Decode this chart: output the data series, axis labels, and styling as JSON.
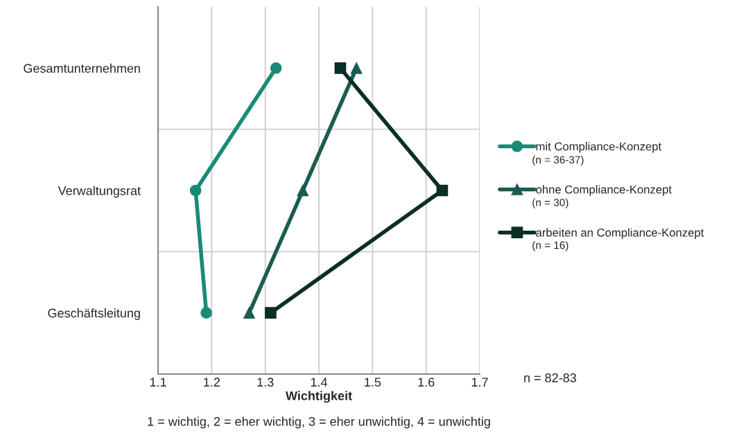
{
  "chart_data": {
    "type": "line",
    "orientation": "horizontal",
    "xlabel": "Wichtigkeit",
    "categories": [
      "Gesamtunternehmen",
      "Verwaltungsrat",
      "Geschäftsleitung"
    ],
    "series": [
      {
        "name": "mit Compliance-Konzept",
        "color": "#1a8a78",
        "marker": "circle",
        "values": [
          1.32,
          1.17,
          1.19
        ]
      },
      {
        "name": "ohne Compliance-Konzept",
        "color": "#1a5c50",
        "marker": "triangle",
        "values": [
          1.47,
          1.37,
          1.27
        ]
      },
      {
        "name": "arbeiten an Compliance-Konzept",
        "color": "#0b2e26",
        "marker": "square",
        "values": [
          1.44,
          1.63,
          1.31
        ]
      }
    ],
    "xlim": [
      1.1,
      1.7
    ],
    "xticks": [
      1.1,
      1.2,
      1.3,
      1.4,
      1.5,
      1.6,
      1.7
    ],
    "grid": true,
    "legend": "right",
    "annotations": [
      "(n = 36-37)",
      "(n = 30)",
      "(n = 16)",
      "n = 82-83",
      "1 = wichtig, 2 = eher wichtig, 3 = eher unwichtig, 4 = unwichtig"
    ]
  }
}
